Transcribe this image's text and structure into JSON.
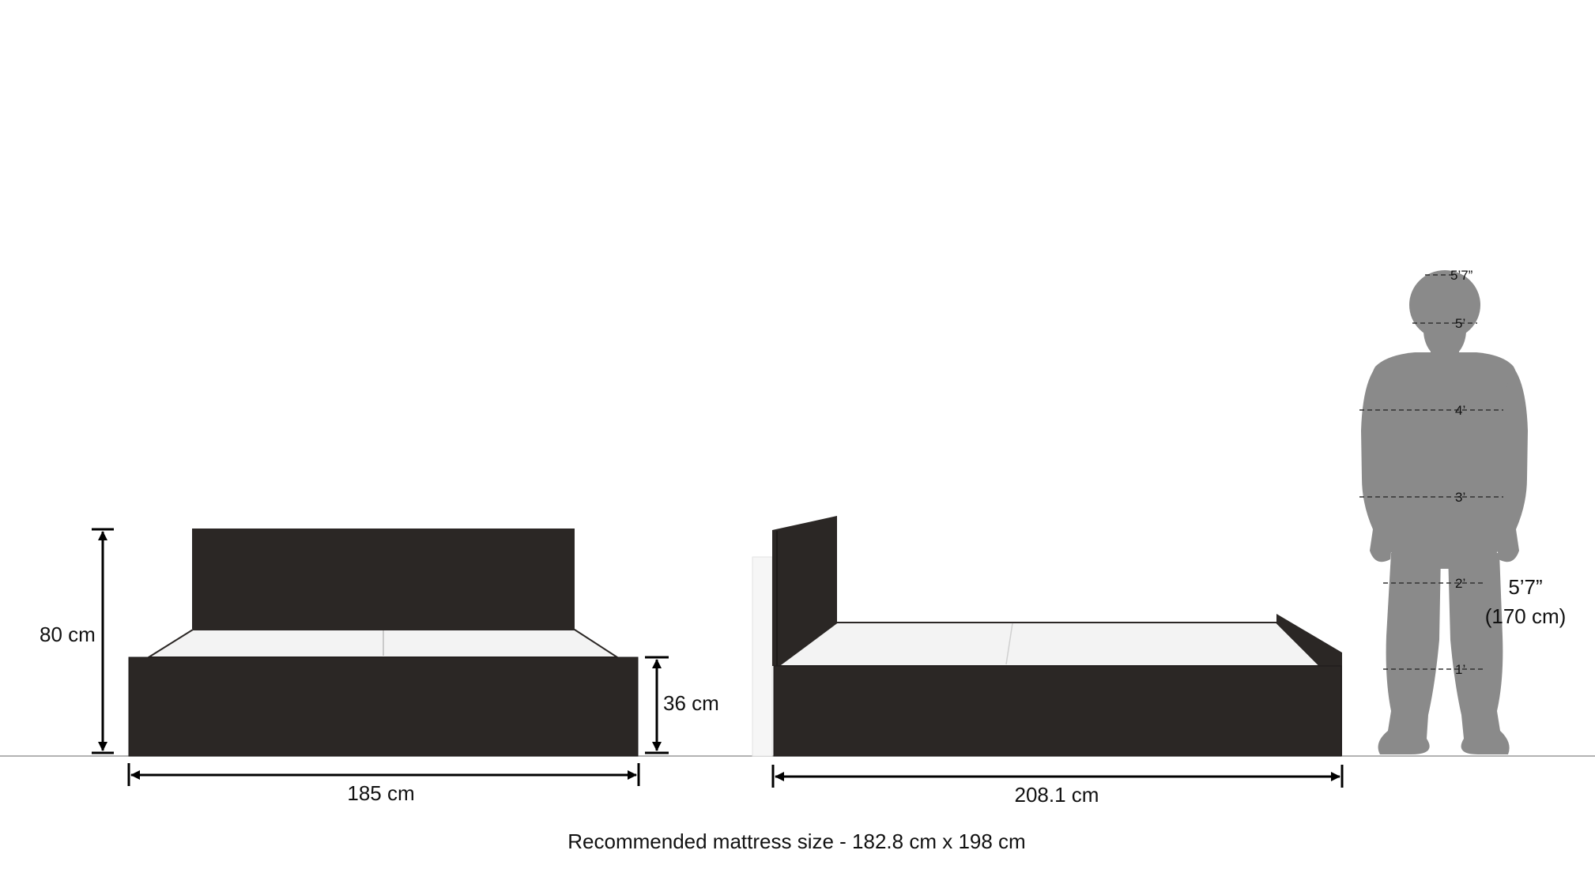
{
  "colors": {
    "wood": "#2b2725",
    "wood_edge": "#1d1a19",
    "storage_surface": "#f3f3f3",
    "person": "#8a8a8a",
    "dimension_lines": "#000000",
    "floor_line": "#9a9a9a"
  },
  "front_view": {
    "width_label": "185 cm",
    "total_height_label": "80 cm",
    "base_height_label": "36 cm"
  },
  "side_view": {
    "length_label": "208.1 cm"
  },
  "human_scale": {
    "height_label": "5’7”",
    "height_metric_label": "(170 cm)",
    "ticks": [
      "5’7”",
      "5’",
      "4’",
      "3’",
      "2’",
      "1’"
    ]
  },
  "caption": "Recommended mattress size - 182.8 cm x 198 cm"
}
